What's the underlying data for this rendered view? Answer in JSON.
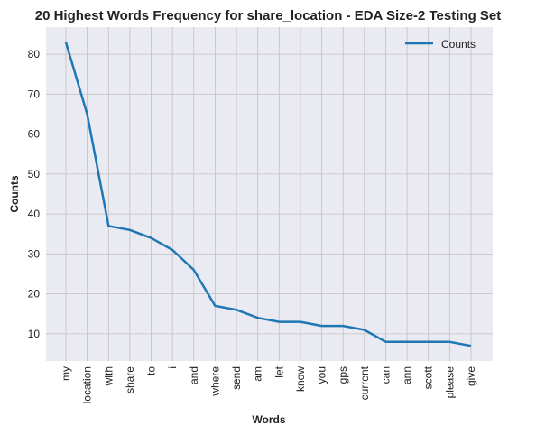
{
  "chart_data": {
    "type": "line",
    "title": "20 Highest Words Frequency for share_location - EDA Size-2 Testing Set",
    "xlabel": "Words",
    "ylabel": "Counts",
    "categories": [
      "my",
      "location",
      "with",
      "share",
      "to",
      "i",
      "and",
      "where",
      "send",
      "am",
      "let",
      "know",
      "you",
      "gps",
      "current",
      "can",
      "ann",
      "scott",
      "please",
      "give"
    ],
    "series": [
      {
        "name": "Counts",
        "values": [
          83,
          65,
          37,
          36,
          34,
          31,
          26,
          17,
          16,
          14,
          13,
          13,
          12,
          12,
          11,
          8,
          8,
          8,
          8,
          7
        ]
      }
    ],
    "yticks": [
      10,
      20,
      30,
      40,
      50,
      60,
      70,
      80
    ],
    "ylim": [
      3.2,
      86.8
    ],
    "grid": true,
    "legend": "top-right",
    "colors": {
      "series": "#1f77b4",
      "plot_bg": "#eaeaf2",
      "grid": "#c0c0c0"
    }
  }
}
